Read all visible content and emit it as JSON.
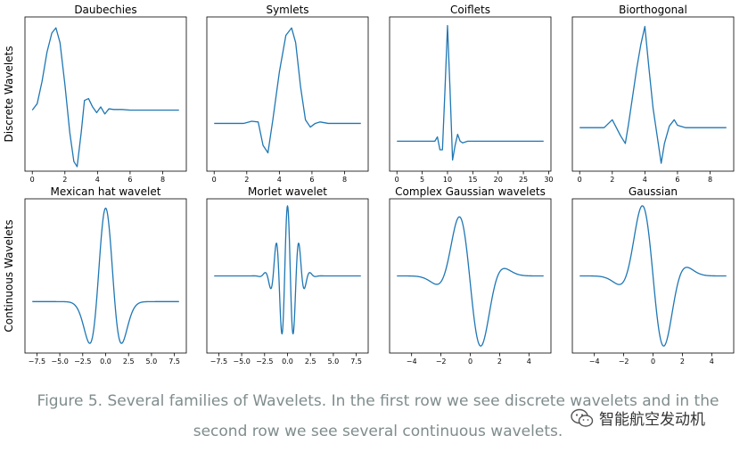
{
  "colors": {
    "line": "#1f77b4",
    "axis": "#000000",
    "caption": "#7f8c8d"
  },
  "row_labels": [
    "Discrete Wavelets",
    "Continuous Wavelets"
  ],
  "caption": {
    "line1": "Figure 5. Several families of Wavelets. In the first row we see discrete wavelets and in the",
    "line2": "second row we see several continuous wavelets."
  },
  "watermark": {
    "text": "智能航空发动机",
    "icon": "wechat-icon"
  },
  "chart_data": [
    {
      "type": "line",
      "title": "Daubechies",
      "xlim": [
        -0.45,
        9.45
      ],
      "ylim": [
        -0.95,
        1.45
      ],
      "xticks": [
        0,
        2,
        4,
        6,
        8
      ],
      "xticklabels": [
        "0",
        "2",
        "4",
        "6",
        "8"
      ],
      "x": [
        0,
        0.3,
        0.6,
        0.9,
        1.2,
        1.45,
        1.7,
        2.0,
        2.3,
        2.55,
        2.75,
        3.0,
        3.2,
        3.45,
        3.7,
        3.95,
        4.2,
        4.45,
        4.7,
        5.0,
        5.5,
        6.0,
        7.0,
        8.0,
        9.0
      ],
      "y": [
        0,
        0.1,
        0.45,
        0.9,
        1.2,
        1.28,
        1.05,
        0.4,
        -0.35,
        -0.8,
        -0.88,
        -0.35,
        0.15,
        0.18,
        0.05,
        -0.04,
        0.05,
        -0.06,
        0.02,
        0.01,
        0.01,
        0,
        0,
        0,
        0
      ]
    },
    {
      "type": "line",
      "title": "Symlets",
      "xlim": [
        -0.45,
        9.45
      ],
      "ylim": [
        -0.65,
        1.45
      ],
      "xticks": [
        0,
        2,
        4,
        6,
        8
      ],
      "xticklabels": [
        "0",
        "2",
        "4",
        "6",
        "8"
      ],
      "x": [
        0,
        1.0,
        1.8,
        2.3,
        2.7,
        3.0,
        3.3,
        3.6,
        4.0,
        4.4,
        4.75,
        5.0,
        5.3,
        5.6,
        5.9,
        6.2,
        6.5,
        7.0,
        8.0,
        9.0
      ],
      "y": [
        0,
        0,
        0,
        0.03,
        0.02,
        -0.3,
        -0.4,
        0.05,
        0.7,
        1.2,
        1.3,
        1.1,
        0.5,
        0.05,
        -0.05,
        0,
        0.02,
        0,
        0,
        0
      ]
    },
    {
      "type": "line",
      "title": "Coiflets",
      "xlim": [
        -1.45,
        30.45
      ],
      "ylim": [
        -0.35,
        1.45
      ],
      "xticks": [
        0,
        5,
        10,
        15,
        20,
        25,
        30
      ],
      "xticklabels": [
        "0",
        "5",
        "10",
        "15",
        "20",
        "25",
        "30"
      ],
      "x": [
        0,
        5,
        6.5,
        7.5,
        8,
        8.5,
        9,
        9.5,
        10,
        10.5,
        11,
        11.5,
        12,
        12.5,
        13,
        14,
        15,
        17,
        20,
        25,
        29
      ],
      "y": [
        0,
        0,
        0,
        0,
        0.05,
        -0.1,
        -0.1,
        0.6,
        1.35,
        0.6,
        -0.22,
        -0.05,
        0.08,
        0,
        -0.02,
        0,
        0,
        0,
        0,
        0,
        0
      ]
    },
    {
      "type": "line",
      "title": "Biorthogonal",
      "xlim": [
        -0.45,
        9.45
      ],
      "ylim": [
        -0.55,
        1.4
      ],
      "xticks": [
        0,
        2,
        4,
        6,
        8
      ],
      "xticklabels": [
        "0",
        "2",
        "4",
        "6",
        "8"
      ],
      "x": [
        0,
        1.0,
        1.5,
        2.0,
        2.5,
        2.8,
        3.0,
        3.25,
        3.5,
        3.75,
        4.0,
        4.25,
        4.5,
        4.75,
        5.0,
        5.2,
        5.5,
        5.8,
        6.0,
        6.5,
        7.0,
        8.0,
        9.0
      ],
      "y": [
        0,
        0,
        0,
        0.1,
        -0.1,
        -0.2,
        0.05,
        0.4,
        0.75,
        1.05,
        1.28,
        0.75,
        0.25,
        -0.1,
        -0.45,
        -0.2,
        0.02,
        0.1,
        0.03,
        0,
        0,
        0,
        0
      ]
    },
    {
      "type": "line",
      "title": "Mexican hat wavelet",
      "fn": "mexhat",
      "xlim": [
        -8.8,
        8.8
      ],
      "ylim": [
        -0.55,
        1.1
      ],
      "xticks": [
        -7.5,
        -5,
        -2.5,
        0,
        2.5,
        5,
        7.5
      ],
      "xticklabels": [
        "−7.5",
        "−5.0",
        "−2.5",
        "0.0",
        "2.5",
        "5.0",
        "7.5"
      ]
    },
    {
      "type": "line",
      "title": "Morlet wavelet",
      "fn": "morlet",
      "xlim": [
        -8.8,
        8.8
      ],
      "ylim": [
        -1.1,
        1.1
      ],
      "xticks": [
        -7.5,
        -5,
        -2.5,
        0,
        2.5,
        5,
        7.5
      ],
      "xticklabels": [
        "−7.5",
        "−5.0",
        "−2.5",
        "0.0",
        "2.5",
        "5.0",
        "7.5"
      ]
    },
    {
      "type": "line",
      "title": "Complex Gaussian wavelets",
      "fn": "cgau",
      "xlim": [
        -5.5,
        5.5
      ],
      "ylim": [
        -1.1,
        1.1
      ],
      "xticks": [
        -4,
        -2,
        0,
        2,
        4
      ],
      "xticklabels": [
        "−4",
        "−2",
        "0",
        "2",
        "4"
      ]
    },
    {
      "type": "line",
      "title": "Gaussian",
      "fn": "gaus",
      "xlim": [
        -5.5,
        5.5
      ],
      "ylim": [
        -1.1,
        1.1
      ],
      "xticks": [
        -4,
        -2,
        0,
        2,
        4
      ],
      "xticklabels": [
        "−4",
        "−2",
        "0",
        "2",
        "4"
      ]
    }
  ]
}
